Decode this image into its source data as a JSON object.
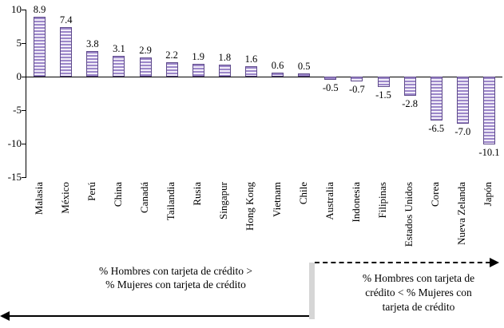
{
  "chart_data": {
    "type": "bar",
    "categories": [
      "Malasia",
      "México",
      "Perú",
      "China",
      "Canadá",
      "Tailandia",
      "Rusia",
      "Singapur",
      "Hong Kong",
      "Vietnam",
      "Chile",
      "Australia",
      "Indonesia",
      "Filipinas",
      "Estados Unidos",
      "Corea",
      "Nueva Zelanda",
      "Japón"
    ],
    "values": [
      8.9,
      7.4,
      3.8,
      3.1,
      2.9,
      2.2,
      1.9,
      1.8,
      1.6,
      0.6,
      0.5,
      -0.5,
      -0.7,
      -1.5,
      -2.8,
      -6.5,
      -7.0,
      -10.1
    ],
    "ylim": [
      -15,
      10
    ],
    "yticks": [
      10,
      5,
      0,
      -5,
      -10,
      -15
    ],
    "grid": false,
    "legend": "none",
    "bar_stripe_color": "#9c87c9",
    "bar_fill_color": "#f2eef9",
    "bar_border_color": "#5f4b8b"
  },
  "annotations": {
    "left": {
      "line1": "% Hombres con tarjeta de crédito >",
      "line2": "% Mujeres con tarjeta de crédito"
    },
    "right": {
      "line1": "% Hombres con tarjeta de",
      "line2": "crédito  <  % Mujeres con",
      "line3": "tarjeta de crédito"
    }
  }
}
